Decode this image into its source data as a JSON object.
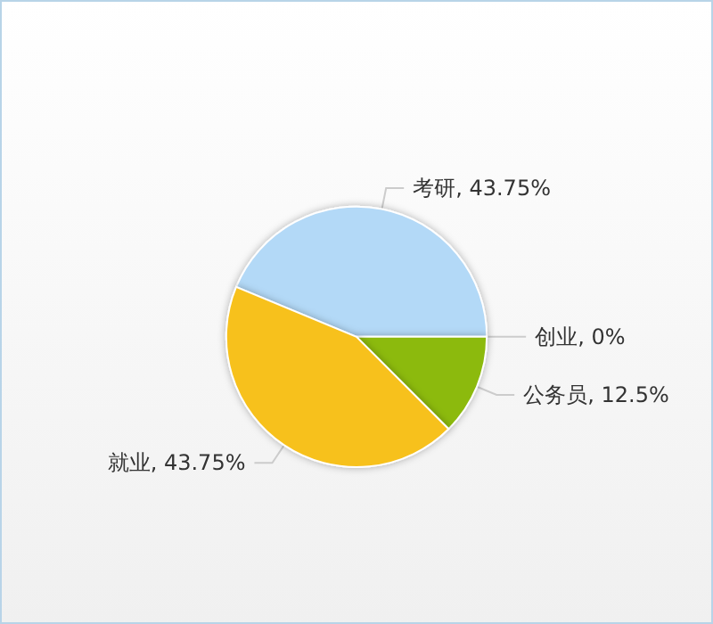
{
  "chart_data": {
    "type": "pie",
    "categories": [
      "考研",
      "创业",
      "公务员",
      "就业"
    ],
    "values": [
      43.75,
      0,
      12.5,
      43.75
    ],
    "colors": [
      "#b3d9f7",
      "#e0e0e0",
      "#8cba0e",
      "#f7c11f"
    ],
    "value_labels": [
      "43.75%",
      "0%",
      "12.5%",
      "43.75%"
    ]
  }
}
